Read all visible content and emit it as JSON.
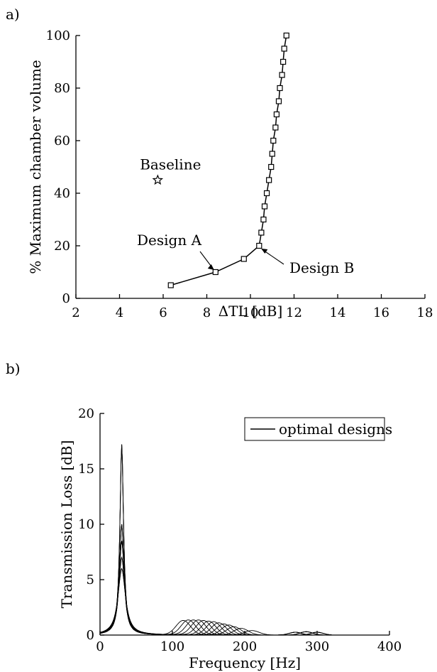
{
  "chart_data": [
    {
      "panel_label": "a)",
      "type": "line",
      "xlabel": "ΔTL  [dB]",
      "ylabel": "% Maximum chamber volume",
      "xlim": [
        2,
        18
      ],
      "ylim": [
        0,
        100
      ],
      "xticks": [
        "2",
        "4",
        "6",
        "8",
        "10",
        "12",
        "14",
        "16",
        "18"
      ],
      "yticks": [
        "0",
        "20",
        "40",
        "60",
        "80",
        "100"
      ],
      "grid": false,
      "series": [
        {
          "marker": "square",
          "points": [
            [
              6.35,
              5
            ],
            [
              8.4,
              10
            ],
            [
              9.7,
              15
            ],
            [
              10.4,
              20
            ],
            [
              10.5,
              25
            ],
            [
              10.6,
              30
            ],
            [
              10.65,
              35
            ],
            [
              10.75,
              40
            ],
            [
              10.85,
              45
            ],
            [
              10.95,
              50
            ],
            [
              11.0,
              55
            ],
            [
              11.05,
              60
            ],
            [
              11.15,
              65
            ],
            [
              11.2,
              70
            ],
            [
              11.3,
              75
            ],
            [
              11.35,
              80
            ],
            [
              11.45,
              85
            ],
            [
              11.5,
              90
            ],
            [
              11.55,
              95
            ],
            [
              11.65,
              100
            ]
          ]
        }
      ],
      "special_point": {
        "label": "Baseline",
        "x": 5.75,
        "y": 45,
        "marker": "star"
      },
      "annotations": [
        {
          "text": "Design A",
          "x": 8.4,
          "y": 10
        },
        {
          "text": "Design B",
          "x": 10.4,
          "y": 20
        }
      ]
    },
    {
      "panel_label": "b)",
      "type": "line",
      "xlabel": "Frequency [Hz]",
      "ylabel": "Transmission Loss [dB]",
      "xlim": [
        0,
        400
      ],
      "ylim": [
        0,
        20
      ],
      "xticks": [
        "0",
        "100",
        "200",
        "300",
        "400"
      ],
      "yticks": [
        "0",
        "5",
        "10",
        "15",
        "20"
      ],
      "grid": false,
      "legend": {
        "entries": [
          "optimal designs"
        ],
        "position": "top-right"
      },
      "curves": {
        "freq_max": 320,
        "low_peak": {
          "center_hz": 30,
          "peak_values": [
            17.2,
            10.0,
            8.5,
            7.0,
            6.0
          ]
        },
        "mid_humps": {
          "centers_hz": [
            115,
            122,
            129,
            136,
            143,
            150,
            157,
            164,
            171,
            178,
            185,
            195,
            210
          ],
          "heights_db": [
            1.3,
            1.35,
            1.35,
            1.35,
            1.3,
            1.25,
            1.2,
            1.1,
            1.0,
            0.9,
            0.75,
            0.6,
            0.4
          ]
        },
        "high_humps": {
          "centers_hz": [
            270,
            285,
            300
          ],
          "heights_db": [
            0.25,
            0.3,
            0.25
          ]
        }
      }
    }
  ]
}
